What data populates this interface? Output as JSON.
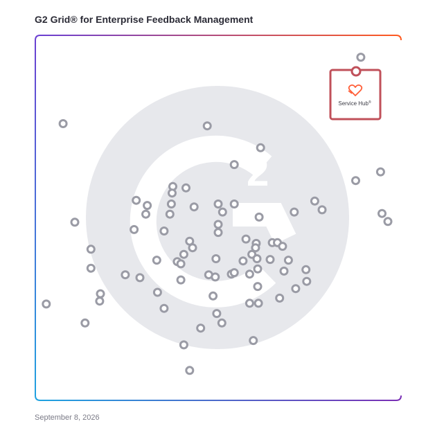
{
  "title": "G2 Grid® for Enterprise Feedback Management",
  "date": "September 8, 2026",
  "highlight": {
    "label": "Service Hub",
    "label_suffix": "®",
    "icon": "heart-hand-icon"
  },
  "colors": {
    "frame_top_left": "#6b3fd1",
    "frame_top_right": "#ff5a1f",
    "frame_bottom_left": "#1fa2e0",
    "frame_bottom_right": "#7a2fb5",
    "h_line_left": "#3b6bd6",
    "h_line_right": "#c2314a",
    "v_line_top": "#b05ab0",
    "v_line_bottom": "#6a5fd6",
    "dot_stroke": "#9a9ba5",
    "highlight_stroke": "#c0505a",
    "watermark": "#e7e8ec"
  },
  "chart_data": {
    "type": "scatter",
    "xlim": [
      0,
      100
    ],
    "ylim": [
      0,
      100
    ],
    "quadrant_split": {
      "x": 50,
      "y": 50
    },
    "grid": false,
    "axis_labels_shown": false,
    "highlighted_point": {
      "x": 88,
      "y": 90
    },
    "points": [
      {
        "x": 89,
        "y": 94
      },
      {
        "x": 7.6,
        "y": 75.8
      },
      {
        "x": 47,
        "y": 75.2
      },
      {
        "x": 61.6,
        "y": 69.2
      },
      {
        "x": 54.4,
        "y": 64.6
      },
      {
        "x": 94.4,
        "y": 62.6
      },
      {
        "x": 87.6,
        "y": 60.2
      },
      {
        "x": 37.6,
        "y": 58.6
      },
      {
        "x": 41.2,
        "y": 58.2
      },
      {
        "x": 37.4,
        "y": 56.8
      },
      {
        "x": 27.6,
        "y": 54.8
      },
      {
        "x": 30.6,
        "y": 53.4
      },
      {
        "x": 37.2,
        "y": 53.8
      },
      {
        "x": 43.4,
        "y": 53
      },
      {
        "x": 50,
        "y": 53.8
      },
      {
        "x": 54.4,
        "y": 53.8
      },
      {
        "x": 51.2,
        "y": 51.6
      },
      {
        "x": 30.2,
        "y": 51
      },
      {
        "x": 36.8,
        "y": 51
      },
      {
        "x": 61.2,
        "y": 50.2
      },
      {
        "x": 70.8,
        "y": 51.6
      },
      {
        "x": 76.4,
        "y": 54.6
      },
      {
        "x": 78.4,
        "y": 52.2
      },
      {
        "x": 94.8,
        "y": 51.2
      },
      {
        "x": 96.4,
        "y": 49
      },
      {
        "x": 10.8,
        "y": 48.8
      },
      {
        "x": 27,
        "y": 46.8
      },
      {
        "x": 35.2,
        "y": 46.4
      },
      {
        "x": 50,
        "y": 48.2
      },
      {
        "x": 50,
        "y": 46
      },
      {
        "x": 42.2,
        "y": 43.6
      },
      {
        "x": 43,
        "y": 41.8
      },
      {
        "x": 57.6,
        "y": 44.2
      },
      {
        "x": 60.4,
        "y": 43
      },
      {
        "x": 60.2,
        "y": 41.8
      },
      {
        "x": 64.8,
        "y": 43.2
      },
      {
        "x": 66.2,
        "y": 43.2
      },
      {
        "x": 67.6,
        "y": 42.2
      },
      {
        "x": 15.2,
        "y": 41.4
      },
      {
        "x": 40.6,
        "y": 40
      },
      {
        "x": 59.2,
        "y": 40
      },
      {
        "x": 60.6,
        "y": 38.8
      },
      {
        "x": 56.8,
        "y": 38.2
      },
      {
        "x": 33.2,
        "y": 38.4
      },
      {
        "x": 38.8,
        "y": 38
      },
      {
        "x": 39.8,
        "y": 37.4
      },
      {
        "x": 64.2,
        "y": 38.6
      },
      {
        "x": 69.2,
        "y": 38.4
      },
      {
        "x": 49.4,
        "y": 38.8
      },
      {
        "x": 60.8,
        "y": 36
      },
      {
        "x": 74,
        "y": 35.8
      },
      {
        "x": 15.2,
        "y": 36.2
      },
      {
        "x": 24.6,
        "y": 34.4
      },
      {
        "x": 28.6,
        "y": 33.6
      },
      {
        "x": 39.8,
        "y": 33
      },
      {
        "x": 47.4,
        "y": 34.4
      },
      {
        "x": 49.2,
        "y": 33.8
      },
      {
        "x": 53.6,
        "y": 34.6
      },
      {
        "x": 54.4,
        "y": 35
      },
      {
        "x": 58.6,
        "y": 34.6
      },
      {
        "x": 68,
        "y": 35.4
      },
      {
        "x": 74.2,
        "y": 32.6
      },
      {
        "x": 17.8,
        "y": 29.2
      },
      {
        "x": 33.4,
        "y": 29.6
      },
      {
        "x": 48.6,
        "y": 28.6
      },
      {
        "x": 60.8,
        "y": 31.2
      },
      {
        "x": 17.6,
        "y": 27.2
      },
      {
        "x": 61,
        "y": 26.6
      },
      {
        "x": 58.6,
        "y": 26.6
      },
      {
        "x": 66.8,
        "y": 28
      },
      {
        "x": 71.2,
        "y": 30.6
      },
      {
        "x": 3,
        "y": 26.4
      },
      {
        "x": 35.2,
        "y": 25.2
      },
      {
        "x": 49.6,
        "y": 23.8
      },
      {
        "x": 13.6,
        "y": 21.2
      },
      {
        "x": 51,
        "y": 21.2
      },
      {
        "x": 45.2,
        "y": 19.8
      },
      {
        "x": 59.6,
        "y": 16.4
      },
      {
        "x": 40.6,
        "y": 15.2
      },
      {
        "x": 42.2,
        "y": 8.2
      }
    ]
  }
}
